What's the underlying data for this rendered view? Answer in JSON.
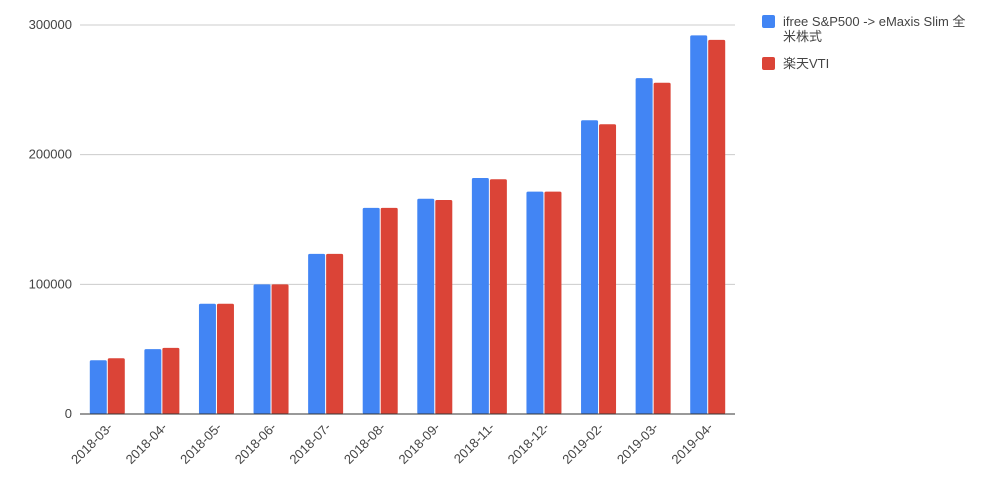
{
  "chart_data": {
    "type": "bar",
    "categories": [
      "2018-03-",
      "2018-04-",
      "2018-05-",
      "2018-06-",
      "2018-07-",
      "2018-08-",
      "2018-09-",
      "2018-11-",
      "2018-12-",
      "2019-02-",
      "2019-03-",
      "2019-04-"
    ],
    "series": [
      {
        "name": "ifree S&P500 -> eMaxis Slim 全米株式",
        "color": "#4285f4",
        "values": [
          41500,
          50000,
          85000,
          100000,
          123500,
          159000,
          166000,
          182000,
          171500,
          226500,
          259000,
          292000
        ]
      },
      {
        "name": "楽天VTI",
        "color": "#db4437",
        "values": [
          43000,
          51000,
          85000,
          100000,
          123500,
          159000,
          165000,
          181000,
          171500,
          223500,
          255500,
          288500
        ]
      }
    ],
    "ylim": [
      0,
      300000
    ],
    "yticks": [
      0,
      100000,
      200000,
      300000
    ],
    "grid": true,
    "legend": "right"
  }
}
